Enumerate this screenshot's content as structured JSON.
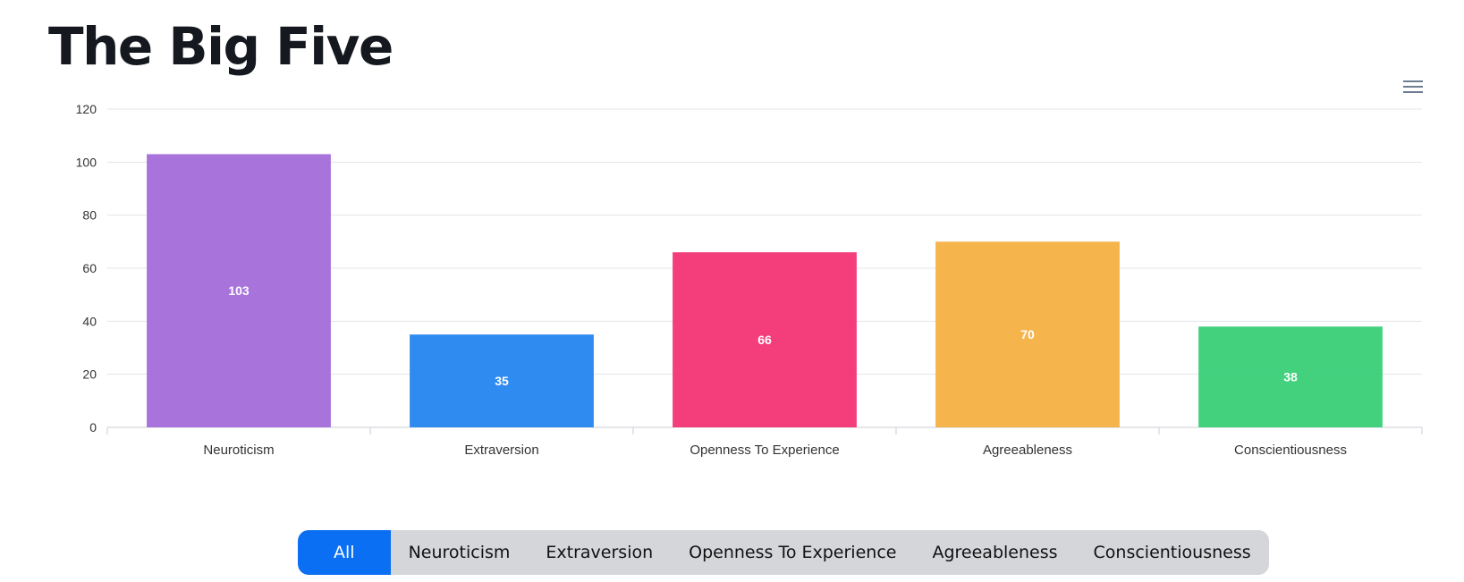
{
  "title": "The Big Five",
  "menu_icon": "hamburger-menu-icon",
  "chart_data": {
    "type": "bar",
    "title": "",
    "categories": [
      "Neuroticism",
      "Extraversion",
      "Openness To Experience",
      "Agreeableness",
      "Conscientiousness"
    ],
    "values": [
      103,
      35,
      66,
      70,
      38
    ],
    "data_labels": [
      "103",
      "35",
      "66",
      "70",
      "38"
    ],
    "colors": [
      "#a36bd9",
      "#2585f0",
      "#f33474",
      "#f5b043",
      "#39cf77"
    ],
    "ylim": [
      0,
      120
    ],
    "yticks": [
      0,
      20,
      40,
      60,
      80,
      100,
      120
    ],
    "xlabel": "",
    "ylabel": "",
    "grid": true
  },
  "filter": {
    "options": [
      "All",
      "Neuroticism",
      "Extraversion",
      "Openness To Experience",
      "Agreeableness",
      "Conscientiousness"
    ],
    "selected": "All",
    "active_color": "#0a6ff2"
  }
}
